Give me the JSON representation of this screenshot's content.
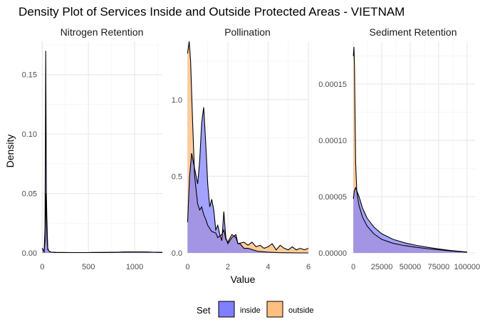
{
  "chart_data": {
    "type": "area",
    "title": "Density Plot of Services Inside and Outside Protected Areas - VIETNAM",
    "xlabel": "Value",
    "ylabel": "Density",
    "grid": true,
    "legend": {
      "title": "Set",
      "placement": "bottom",
      "entries": [
        {
          "name": "inside",
          "color": "#7f7fff"
        },
        {
          "name": "outside",
          "color": "#ffbf7f"
        }
      ]
    },
    "overlap_color": "#b38b93",
    "facets": [
      {
        "title": "Nitrogen Retention",
        "xlim": [
          -10,
          1300
        ],
        "ylim": [
          0,
          0.178
        ],
        "x_ticks": [
          0,
          500,
          1000
        ],
        "x_tick_labels": [
          "0",
          "500",
          "1000"
        ],
        "y_ticks": [
          0,
          0.05,
          0.1,
          0.15
        ],
        "y_tick_labels": [
          "0.00",
          "0.05",
          "0.10",
          "0.15"
        ],
        "series": [
          {
            "name": "inside",
            "x": [
              0,
              20,
              30,
              38,
              45,
              50,
              55,
              60,
              70,
              80,
              100,
              150,
              300,
              500,
              700,
              800,
              900,
              1000,
              1100,
              1200,
              1300
            ],
            "y": [
              0.004,
              0.001,
              0.02,
              0.17,
              0.05,
              0.03,
              0.015,
              0.004,
              0.002,
              0.001,
              0.0006,
              0.0004,
              0.0003,
              0.0003,
              0.0004,
              0.0006,
              0.0008,
              0.0009,
              0.0008,
              0.0006,
              0.0004
            ]
          },
          {
            "name": "outside",
            "x": [
              0,
              20,
              30,
              38,
              42,
              48,
              55,
              60,
              70,
              80,
              100,
              150,
              300,
              500,
              700,
              800,
              900,
              1000,
              1100,
              1200,
              1300
            ],
            "y": [
              0.004,
              0.001,
              0.01,
              0.05,
              0.037,
              0.02,
              0.008,
              0.003,
              0.002,
              0.001,
              0.0006,
              0.0004,
              0.0003,
              0.0003,
              0.0004,
              0.0005,
              0.0007,
              0.0008,
              0.0008,
              0.0006,
              0.0004
            ]
          }
        ]
      },
      {
        "title": "Pollination",
        "xlim": [
          -0.05,
          6.0
        ],
        "ylim": [
          0,
          1.38
        ],
        "x_ticks": [
          0,
          2,
          4,
          6
        ],
        "x_tick_labels": [
          "0",
          "2",
          "4",
          "6"
        ],
        "y_ticks": [
          0,
          0.5,
          1.0
        ],
        "y_tick_labels": [
          "0.0",
          "0.5",
          "1.0"
        ],
        "series": [
          {
            "name": "inside",
            "x": [
              0,
              0.1,
              0.2,
              0.35,
              0.5,
              0.6,
              0.7,
              0.8,
              0.9,
              1.0,
              1.1,
              1.2,
              1.3,
              1.4,
              1.5,
              1.6,
              1.7,
              1.8,
              1.9,
              2.0,
              2.2,
              2.4,
              2.5,
              2.6,
              2.8,
              3.0,
              3.5,
              4.0,
              4.5,
              5.0,
              5.5,
              6.0
            ],
            "y": [
              0.2,
              0.5,
              0.65,
              0.55,
              0.45,
              0.6,
              0.85,
              0.95,
              0.72,
              0.45,
              0.3,
              0.35,
              0.28,
              0.15,
              0.18,
              0.12,
              0.08,
              0.27,
              0.1,
              0.06,
              0.1,
              0.12,
              0.06,
              0.06,
              0.03,
              0.03,
              0.01,
              0.005,
              0.002,
              0.001,
              0.0,
              0.0
            ]
          },
          {
            "name": "outside",
            "x": [
              0,
              0.08,
              0.15,
              0.25,
              0.35,
              0.5,
              0.6,
              0.7,
              0.8,
              0.9,
              1.0,
              1.2,
              1.4,
              1.5,
              1.7,
              1.8,
              1.9,
              2.0,
              2.2,
              2.4,
              2.5,
              2.8,
              3.0,
              3.2,
              3.4,
              3.6,
              3.8,
              4.0,
              4.2,
              4.4,
              4.6,
              4.8,
              5.0,
              5.2,
              5.4,
              5.6,
              5.8,
              6.0
            ],
            "y": [
              1.3,
              1.38,
              1.25,
              0.85,
              0.5,
              0.32,
              0.28,
              0.3,
              0.25,
              0.22,
              0.18,
              0.14,
              0.13,
              0.1,
              0.12,
              0.15,
              0.09,
              0.07,
              0.12,
              0.1,
              0.06,
              0.07,
              0.05,
              0.07,
              0.04,
              0.05,
              0.03,
              0.04,
              0.06,
              0.02,
              0.05,
              0.03,
              0.02,
              0.04,
              0.02,
              0.03,
              0.02,
              0.03
            ]
          }
        ]
      },
      {
        "title": "Sediment Retention",
        "xlim": [
          -2000,
          107000
        ],
        "ylim": [
          0,
          0.000188
        ],
        "x_ticks": [
          0,
          25000,
          50000,
          75000,
          100000
        ],
        "x_tick_labels": [
          "0",
          "25000",
          "50000",
          "75000",
          "100000"
        ],
        "y_ticks": [
          0,
          5e-05,
          0.0001,
          0.00015
        ],
        "y_tick_labels": [
          "0.00000",
          "0.00005",
          "0.00010",
          "0.00015"
        ],
        "series": [
          {
            "name": "inside",
            "x": [
              0,
              800,
              2000,
              3500,
              5000,
              8000,
              12000,
              18000,
              25000,
              35000,
              45000,
              55000,
              65000,
              75000,
              85000,
              95000,
              100000
            ],
            "y": [
              4.8e-05,
              5.5e-05,
              5.8e-05,
              5.4e-05,
              5e-05,
              4e-05,
              3.1e-05,
              2.3e-05,
              1.7e-05,
              1.2e-05,
              9e-06,
              6.8e-06,
              5e-06,
              3.5e-06,
              2.2e-06,
              1.2e-06,
              8e-07
            ]
          },
          {
            "name": "outside",
            "x": [
              0,
              500,
              1000,
              1500,
              2000,
              3000,
              4000,
              5000,
              8000,
              12000,
              18000,
              25000,
              35000,
              45000,
              55000,
              65000,
              75000,
              85000,
              95000,
              100000
            ],
            "y": [
              0.000175,
              0.000183,
              0.000165,
              0.00012,
              8e-05,
              5.5e-05,
              4.8e-05,
              4.2e-05,
              3.2e-05,
              2.4e-05,
              1.7e-05,
              1.2e-05,
              8.5e-06,
              6.5e-06,
              5e-06,
              3.8e-06,
              2.8e-06,
              1.8e-06,
              1e-06,
              7e-07
            ]
          }
        ]
      }
    ]
  }
}
